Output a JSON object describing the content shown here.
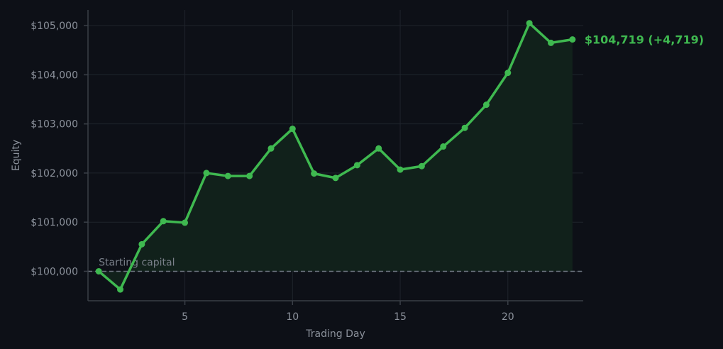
{
  "chart_data": {
    "type": "line",
    "title": "",
    "xlabel": "Trading Day",
    "ylabel": "Equity",
    "xlim": [
      0.5,
      23.5
    ],
    "ylim": [
      99400,
      105320
    ],
    "xticks": [
      5,
      10,
      15,
      20
    ],
    "xtick_labels": [
      "5",
      "10",
      "15",
      "20"
    ],
    "yticks": [
      100000,
      101000,
      102000,
      103000,
      104000,
      105000
    ],
    "ytick_labels": [
      "$100,000",
      "$101,000",
      "$102,000",
      "$103,000",
      "$104,000",
      "$105,000"
    ],
    "grid": true,
    "x": [
      1,
      2,
      3,
      4,
      5,
      6,
      7,
      8,
      9,
      10,
      11,
      12,
      13,
      14,
      15,
      16,
      17,
      18,
      19,
      20,
      21,
      22,
      23
    ],
    "series": [
      {
        "values": [
          100000,
          99630,
          100550,
          101020,
          100990,
          102000,
          101940,
          101940,
          102500,
          102900,
          101990,
          101900,
          102160,
          102500,
          102070,
          102140,
          102540,
          102920,
          103390,
          104040,
          105050,
          104650,
          104719
        ]
      }
    ],
    "reference_line": {
      "value": 100000,
      "label": "Starting capital"
    },
    "end_annotation": "$104,719  (+4,719)",
    "colors": {
      "background": "#0d1017",
      "line": "#3fb950",
      "area": "#11211b",
      "grid": "#1f242c",
      "axis": "#3a3f47",
      "reference": "#6e7681",
      "text": "#8b919b"
    }
  }
}
